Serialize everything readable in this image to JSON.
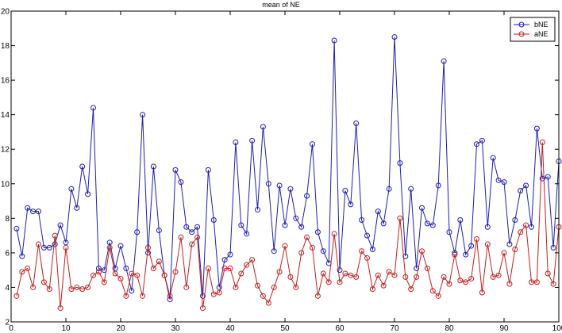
{
  "chart_data": {
    "type": "line",
    "title": "mean of NE",
    "xlabel": "",
    "ylabel": "",
    "xlim": [
      0,
      100
    ],
    "ylim": [
      2,
      20
    ],
    "xticks": [
      0,
      10,
      20,
      30,
      40,
      50,
      60,
      70,
      80,
      90,
      100
    ],
    "yticks": [
      2,
      4,
      6,
      8,
      10,
      12,
      14,
      16,
      18,
      20
    ],
    "grid": false,
    "legend_position": "top-right",
    "x": [
      1,
      2,
      3,
      4,
      5,
      6,
      7,
      8,
      9,
      10,
      11,
      12,
      13,
      14,
      15,
      16,
      17,
      18,
      19,
      20,
      21,
      22,
      23,
      24,
      25,
      26,
      27,
      28,
      29,
      30,
      31,
      32,
      33,
      34,
      35,
      36,
      37,
      38,
      39,
      40,
      41,
      42,
      43,
      44,
      45,
      46,
      47,
      48,
      49,
      50,
      51,
      52,
      53,
      54,
      55,
      56,
      57,
      58,
      59,
      60,
      61,
      62,
      63,
      64,
      65,
      66,
      67,
      68,
      69,
      70,
      71,
      72,
      73,
      74,
      75,
      76,
      77,
      78,
      79,
      80,
      81,
      82,
      83,
      84,
      85,
      86,
      87,
      88,
      89,
      90,
      91,
      92,
      93,
      94,
      95,
      96,
      97,
      98,
      99,
      100
    ],
    "series": [
      {
        "name": "bNE",
        "color": "#1f1fb0",
        "values": [
          7.4,
          5.8,
          8.6,
          8.4,
          8.4,
          6.3,
          6.3,
          6.5,
          7.6,
          6.6,
          9.7,
          8.6,
          11.0,
          9.4,
          14.4,
          5.1,
          5.0,
          6.6,
          5.1,
          6.4,
          5.1,
          3.8,
          7.2,
          14.0,
          6.0,
          11.0,
          7.3,
          4.7,
          3.3,
          10.8,
          10.1,
          7.5,
          7.2,
          7.5,
          3.5,
          10.8,
          7.9,
          4.0,
          5.6,
          5.9,
          12.4,
          7.6,
          7.1,
          12.5,
          8.5,
          13.3,
          10.0,
          6.1,
          9.9,
          7.6,
          9.7,
          8.0,
          7.5,
          9.3,
          12.3,
          7.2,
          6.1,
          5.4,
          18.3,
          5.0,
          9.6,
          8.8,
          13.5,
          7.9,
          7.0,
          6.2,
          8.4,
          7.7,
          9.7,
          18.5,
          11.2,
          5.8,
          9.7,
          5.1,
          8.6,
          7.7,
          7.6,
          9.9,
          17.1,
          7.2,
          6.0,
          7.9,
          5.9,
          6.4,
          12.3,
          12.5,
          7.5,
          11.5,
          10.2,
          10.1,
          6.5,
          7.9,
          9.6,
          9.9,
          7.5,
          13.2,
          10.3,
          10.4,
          6.3,
          11.3
        ]
      },
      {
        "name": "aNE",
        "color": "#c02020",
        "values": [
          3.5,
          4.9,
          5.1,
          4.0,
          6.5,
          4.3,
          3.9,
          7.0,
          2.8,
          6.3,
          3.9,
          4.0,
          3.9,
          4.0,
          4.7,
          4.9,
          4.3,
          6.3,
          4.8,
          4.5,
          3.5,
          4.8,
          4.7,
          3.5,
          6.3,
          5.1,
          5.5,
          4.7,
          3.5,
          4.9,
          6.9,
          4.0,
          6.5,
          6.9,
          2.8,
          5.1,
          3.6,
          3.7,
          5.1,
          5.1,
          4.0,
          4.8,
          5.3,
          5.6,
          4.1,
          3.5,
          3.1,
          4.0,
          4.9,
          6.4,
          4.6,
          4.0,
          6.0,
          6.9,
          6.3,
          3.5,
          4.8,
          4.3,
          7.1,
          4.3,
          4.8,
          4.7,
          4.6,
          6.1,
          5.7,
          3.9,
          4.7,
          4.1,
          4.9,
          4.7,
          8.0,
          4.6,
          3.9,
          4.6,
          6.1,
          5.1,
          3.8,
          3.5,
          4.6,
          4.2,
          5.9,
          4.4,
          4.3,
          4.5,
          6.8,
          3.7,
          6.5,
          4.6,
          4.7,
          6.0,
          4.2,
          6.2,
          7.2,
          7.6,
          4.3,
          4.3,
          12.4,
          4.8,
          4.2,
          7.5
        ]
      }
    ]
  }
}
